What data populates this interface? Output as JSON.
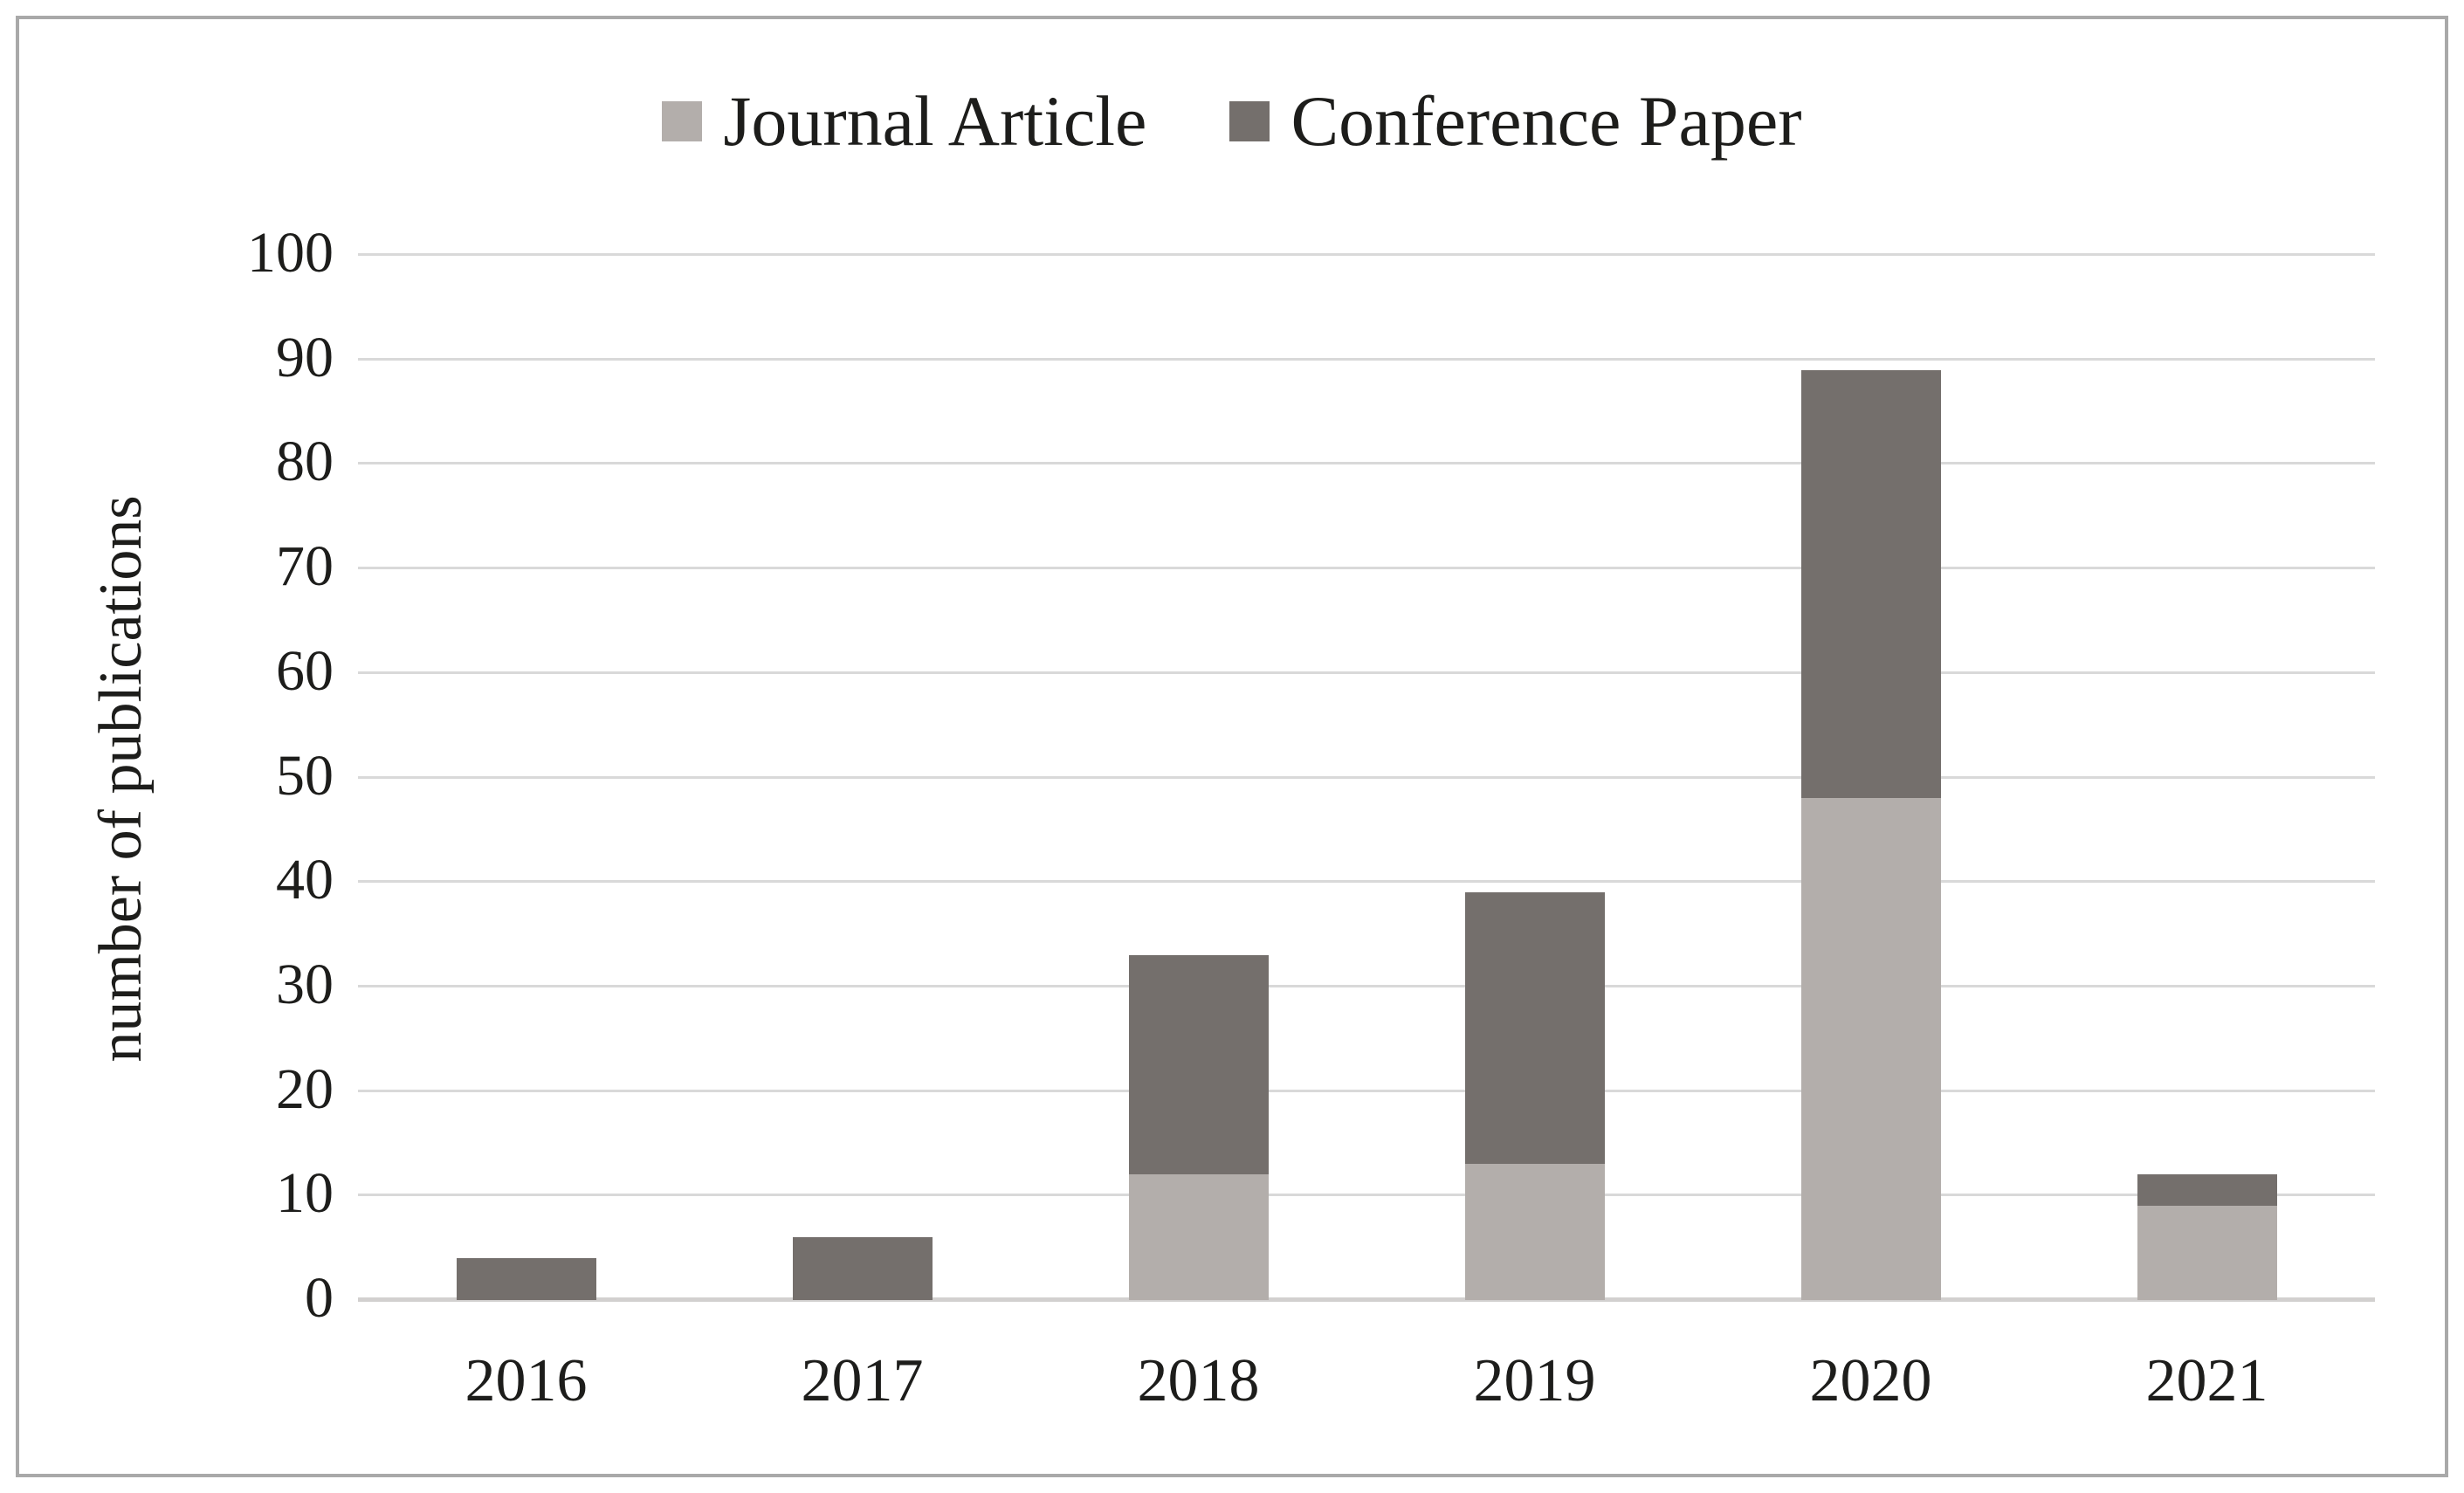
{
  "figure": {
    "background_color": "#ffffff",
    "border_color": "#a9a9a9",
    "text_color": "#1d1d1b"
  },
  "legend": {
    "position": "top-center",
    "items": [
      {
        "label": "Journal Article",
        "color": "#b3aeab"
      },
      {
        "label": "Conference Paper",
        "color": "#746f6c"
      }
    ]
  },
  "chart_data": {
    "type": "bar",
    "stacked": true,
    "title": "",
    "xlabel": "",
    "ylabel": "number of publications",
    "categories": [
      "2016",
      "2017",
      "2018",
      "2019",
      "2020",
      "2021"
    ],
    "series": [
      {
        "name": "Journal Article",
        "color": "#b3aeab",
        "values": [
          0,
          0,
          12,
          13,
          48,
          9
        ]
      },
      {
        "name": "Conference Paper",
        "color": "#746f6c",
        "values": [
          4,
          6,
          21,
          26,
          41,
          3
        ]
      }
    ],
    "totals": [
      4,
      6,
      33,
      39,
      89,
      12
    ],
    "ylim": [
      0,
      100
    ],
    "yticks": [
      0,
      10,
      20,
      30,
      40,
      50,
      60,
      70,
      80,
      90,
      100
    ],
    "grid": true,
    "gridline_color": "#d9d9d9",
    "axis_line_color": "#d2d0cf"
  }
}
